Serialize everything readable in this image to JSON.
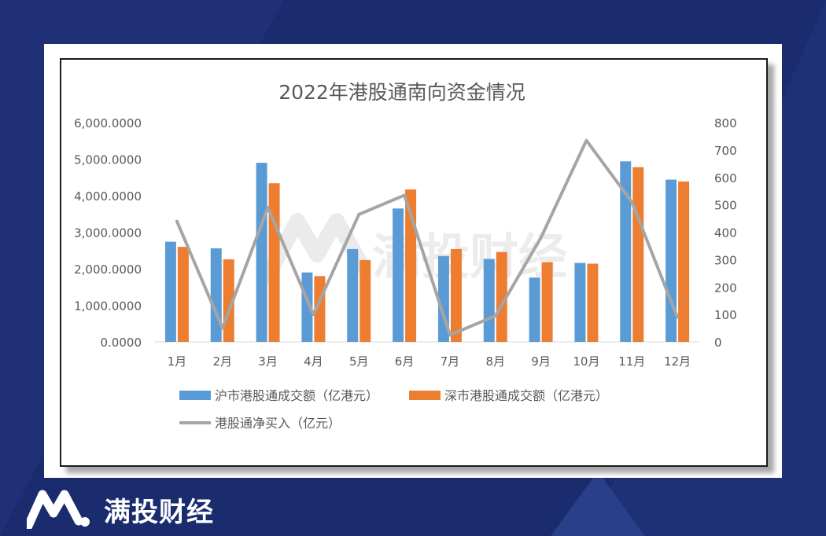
{
  "brand": {
    "name": "满投财经"
  },
  "watermark": {
    "text": "满投财经"
  },
  "colors": {
    "sh": "#5b9bd5",
    "sz": "#ed7d31",
    "net": "#a5a5a5",
    "background": "#1b2c6e"
  },
  "chart_data": {
    "type": "bar",
    "title": "2022年港股通南向资金情况",
    "categories": [
      "1月",
      "2月",
      "3月",
      "4月",
      "5月",
      "6月",
      "7月",
      "8月",
      "9月",
      "10月",
      "11月",
      "12月"
    ],
    "series": [
      {
        "name": "沪市港股通成交额（亿港元）",
        "type": "bar",
        "axis": "left",
        "values": [
          2740,
          2560,
          4900,
          1900,
          2540,
          3650,
          2350,
          2270,
          1760,
          2160,
          4940,
          4440
        ]
      },
      {
        "name": "深市港股通成交额（亿港元）",
        "type": "bar",
        "axis": "left",
        "values": [
          2600,
          2260,
          4340,
          1800,
          2240,
          4170,
          2540,
          2460,
          2180,
          2140,
          4780,
          4390
        ]
      },
      {
        "name": "港股通净买入（亿元）",
        "type": "line",
        "axis": "right",
        "values": [
          440,
          50,
          490,
          100,
          465,
          535,
          25,
          95,
          380,
          735,
          510,
          90
        ]
      }
    ],
    "left_axis": {
      "min": 0,
      "max": 6000,
      "ticks": [
        "0.0000",
        "1,000.0000",
        "2,000.0000",
        "3,000.0000",
        "4,000.0000",
        "5,000.0000",
        "6,000.0000"
      ]
    },
    "right_axis": {
      "min": 0,
      "max": 800,
      "ticks": [
        "0",
        "100",
        "200",
        "300",
        "400",
        "500",
        "600",
        "700",
        "800"
      ]
    },
    "grid": false,
    "legend_position": "bottom"
  }
}
